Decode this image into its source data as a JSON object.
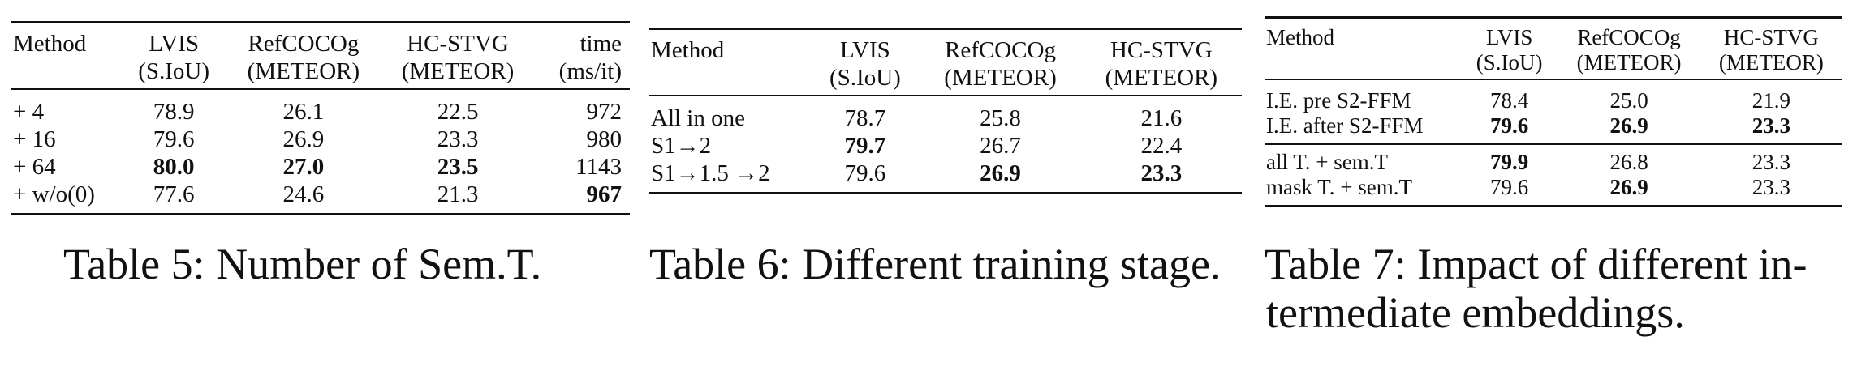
{
  "table5": {
    "headers": [
      [
        "Method",
        ""
      ],
      [
        "LVIS",
        "(S.IoU)"
      ],
      [
        "RefCOCOg",
        "(METEOR)"
      ],
      [
        "HC-STVG",
        "(METEOR)"
      ],
      [
        "time",
        "(ms/it)"
      ]
    ],
    "rows": [
      [
        "+ 4",
        "78.9",
        "26.1",
        "22.5",
        "972"
      ],
      [
        "+ 16",
        "79.6",
        "26.9",
        "23.3",
        "980"
      ],
      [
        "+ 64",
        "80.0",
        "27.0",
        "23.5",
        "1143"
      ],
      [
        "+ w/o(0)",
        "77.6",
        "24.6",
        "21.3",
        "967"
      ]
    ],
    "caption": "Table 5: Number of Sem.T."
  },
  "table6": {
    "headers": [
      [
        "Method",
        ""
      ],
      [
        "LVIS",
        "(S.IoU)"
      ],
      [
        "RefCOCOg",
        "(METEOR)"
      ],
      [
        "HC-STVG",
        "(METEOR)"
      ]
    ],
    "rows": [
      [
        "All in one",
        "78.7",
        "25.8",
        "21.6"
      ],
      [
        "S1→2",
        "79.7",
        "26.7",
        "22.4"
      ],
      [
        "S1→1.5 →2",
        "79.6",
        "26.9",
        "23.3"
      ]
    ],
    "caption": "Table 6: Different training stage."
  },
  "table7": {
    "headers": [
      [
        "Method",
        ""
      ],
      [
        "LVIS",
        "(S.IoU)"
      ],
      [
        "RefCOCOg",
        "(METEOR)"
      ],
      [
        "HC-STVG",
        "(METEOR)"
      ]
    ],
    "rows": [
      [
        "I.E. pre S2-FFM",
        "78.4",
        "25.0",
        "21.9"
      ],
      [
        "I.E. after S2-FFM",
        "79.6",
        "26.9",
        "23.3"
      ],
      [
        "all T. + sem.T",
        "79.9",
        "26.8",
        "23.3"
      ],
      [
        "mask T. + sem.T",
        "79.6",
        "26.9",
        "23.3"
      ]
    ],
    "caption_line1": "Table 7: Impact of different in-",
    "caption_line2": "termediate embeddings."
  }
}
